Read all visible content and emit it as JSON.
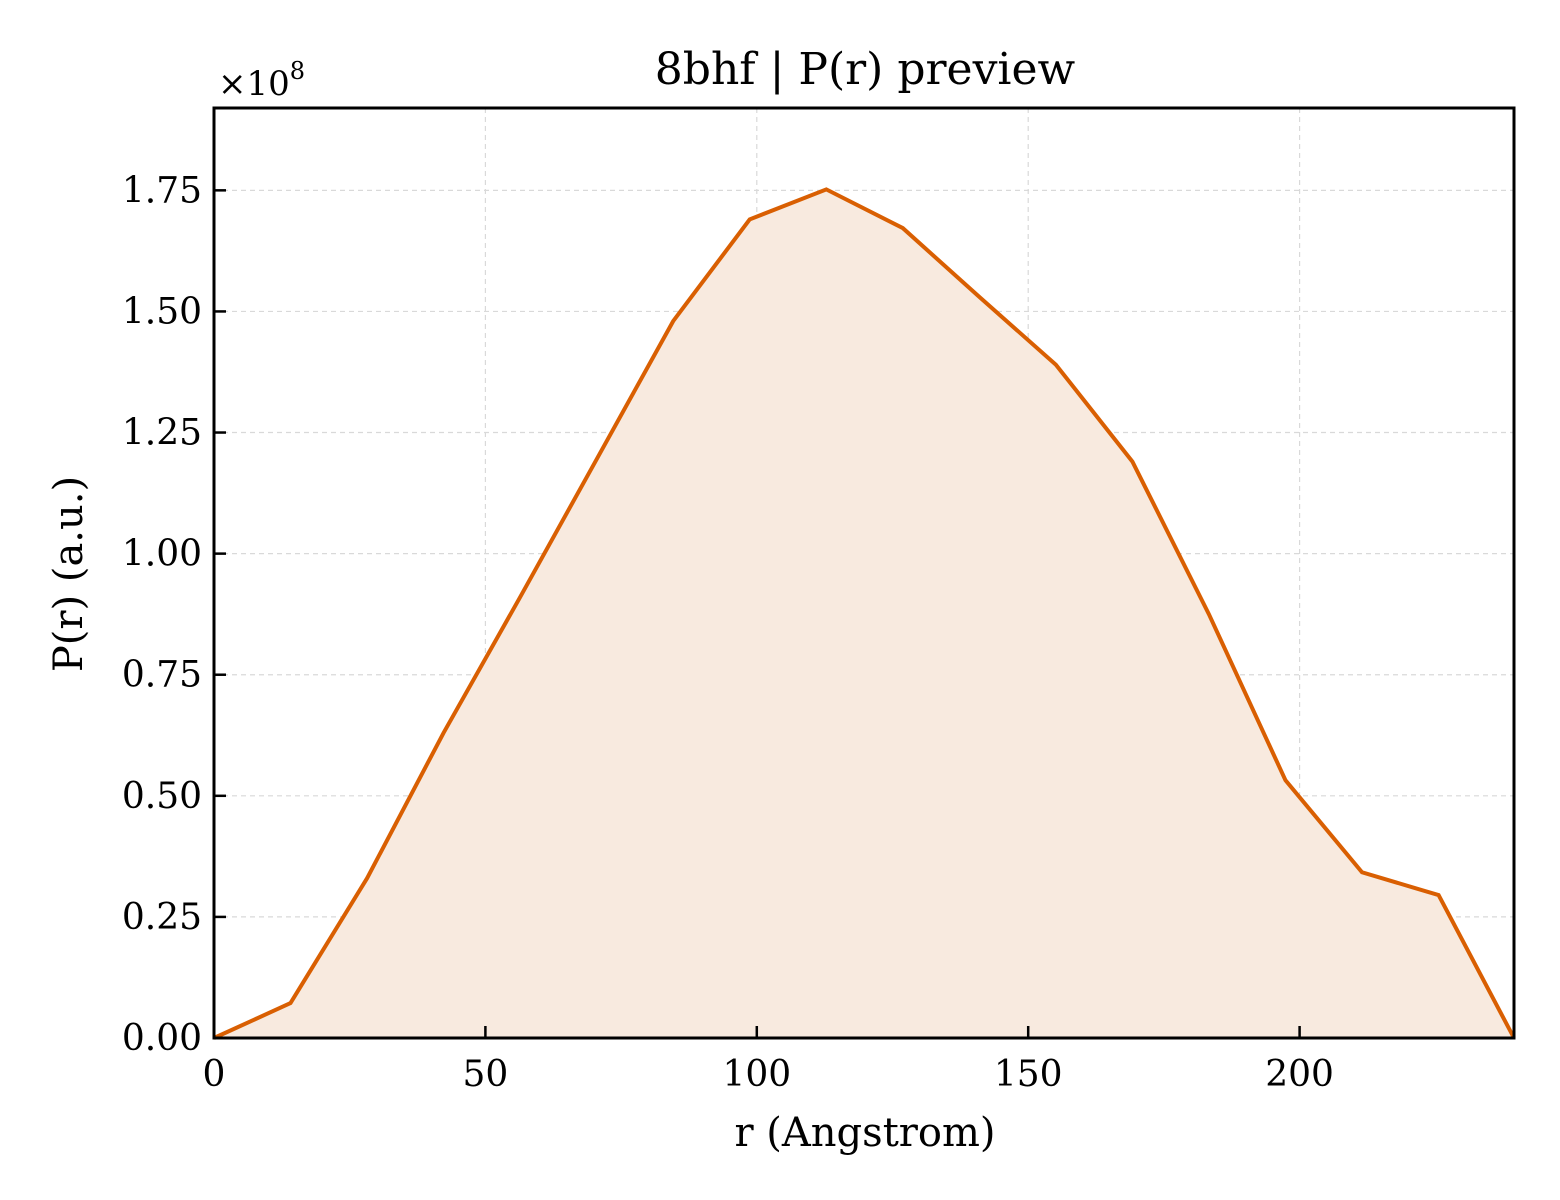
{
  "chart_data": {
    "type": "area",
    "title": "8bhf | P(r) preview",
    "xlabel": "r (Angstrom)",
    "ylabel": "P(r) (a.u.)",
    "y_multiplier": "×10",
    "y_multiplier_exponent": "8",
    "xlim": [
      0,
      239.5
    ],
    "ylim": [
      0,
      1.92
    ],
    "x_ticks": [
      0,
      50,
      100,
      150,
      200
    ],
    "x_tick_labels": [
      "0",
      "50",
      "100",
      "150",
      "200"
    ],
    "y_ticks": [
      0,
      0.25,
      0.5,
      0.75,
      1.0,
      1.25,
      1.5,
      1.75
    ],
    "y_tick_labels": [
      "0.00",
      "0.25",
      "0.50",
      "0.75",
      "1.00",
      "1.25",
      "1.50",
      "1.75"
    ],
    "grid": true,
    "legend": "none",
    "colors": {
      "line": "#d95f02",
      "fill": "#f8eadf",
      "grid": "#d9d9d9"
    },
    "series": [
      {
        "x": [
          0,
          14.1,
          28.2,
          42.3,
          56.4,
          70.5,
          84.6,
          98.7,
          112.8,
          126.9,
          141.0,
          155.1,
          169.2,
          183.3,
          197.4,
          211.5,
          225.6,
          239.5
        ],
        "y": [
          0.0,
          0.072,
          0.33,
          0.63,
          0.91,
          1.195,
          1.48,
          1.69,
          1.752,
          1.672,
          1.53,
          1.39,
          1.19,
          0.875,
          0.532,
          0.342,
          0.295,
          0.0
        ]
      }
    ]
  }
}
